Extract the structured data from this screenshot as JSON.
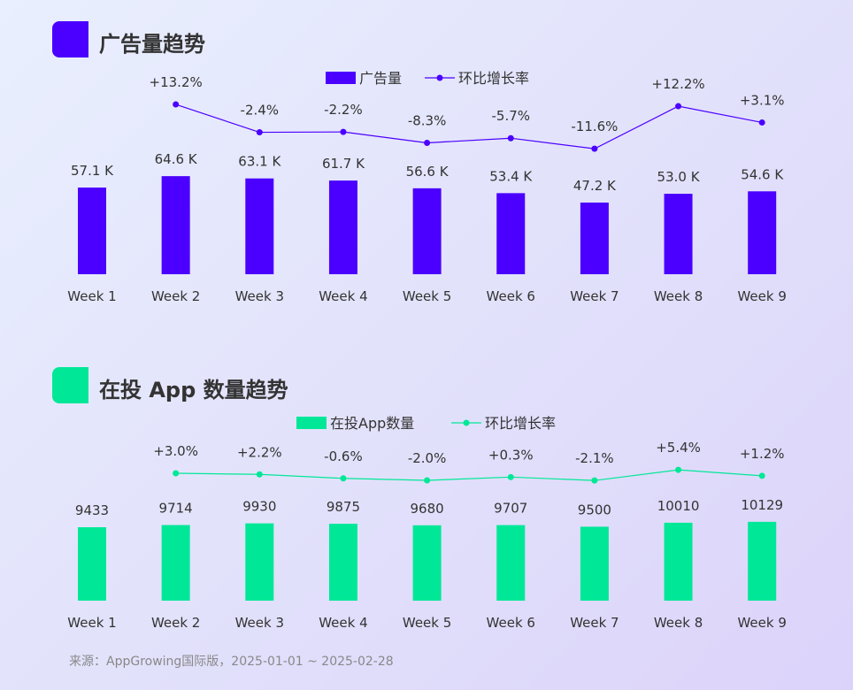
{
  "colors": {
    "ads": "#4b00ff",
    "apps": "#00e897",
    "text": "#333333"
  },
  "chart_data": [
    {
      "type": "bar",
      "title": "广告量趋势",
      "categories": [
        "Week 1",
        "Week 2",
        "Week 3",
        "Week 4",
        "Week 5",
        "Week 6",
        "Week 7",
        "Week 8",
        "Week 9"
      ],
      "series": [
        {
          "name": "广告量",
          "type": "bar",
          "values": [
            57.1,
            64.6,
            63.1,
            61.7,
            56.6,
            53.4,
            47.2,
            53.0,
            54.6
          ],
          "labels": [
            "57.1 K",
            "64.6 K",
            "63.1 K",
            "61.7 K",
            "56.6 K",
            "53.4 K",
            "47.2 K",
            "53.0 K",
            "54.6 K"
          ]
        },
        {
          "name": "环比增长率",
          "type": "line",
          "values": [
            null,
            13.2,
            -2.4,
            -2.2,
            -8.3,
            -5.7,
            -11.6,
            12.2,
            3.1
          ],
          "labels": [
            "",
            "+13.2%",
            "-2.4%",
            "-2.2%",
            "-8.3%",
            "-5.7%",
            "-11.6%",
            "+12.2%",
            "+3.1%"
          ]
        }
      ],
      "legend": "top-center"
    },
    {
      "type": "bar",
      "title": "在投 App 数量趋势",
      "categories": [
        "Week 1",
        "Week 2",
        "Week 3",
        "Week 4",
        "Week 5",
        "Week 6",
        "Week 7",
        "Week 8",
        "Week 9"
      ],
      "series": [
        {
          "name": "在投App数量",
          "type": "bar",
          "values": [
            9433,
            9714,
            9930,
            9875,
            9680,
            9707,
            9500,
            10010,
            10129
          ],
          "labels": [
            "9433",
            "9714",
            "9930",
            "9875",
            "9680",
            "9707",
            "9500",
            "10010",
            "10129"
          ]
        },
        {
          "name": "环比增长率",
          "type": "line",
          "values": [
            null,
            3.0,
            2.2,
            -0.6,
            -2.0,
            0.3,
            -2.1,
            5.4,
            1.2
          ],
          "labels": [
            "",
            "+3.0%",
            "+2.2%",
            "-0.6%",
            "-2.0%",
            "+0.3%",
            "-2.1%",
            "+5.4%",
            "+1.2%"
          ]
        }
      ],
      "legend": "top-center"
    }
  ],
  "source": "来源：AppGrowing国际版，2025-01-01 ~ 2025-02-28"
}
